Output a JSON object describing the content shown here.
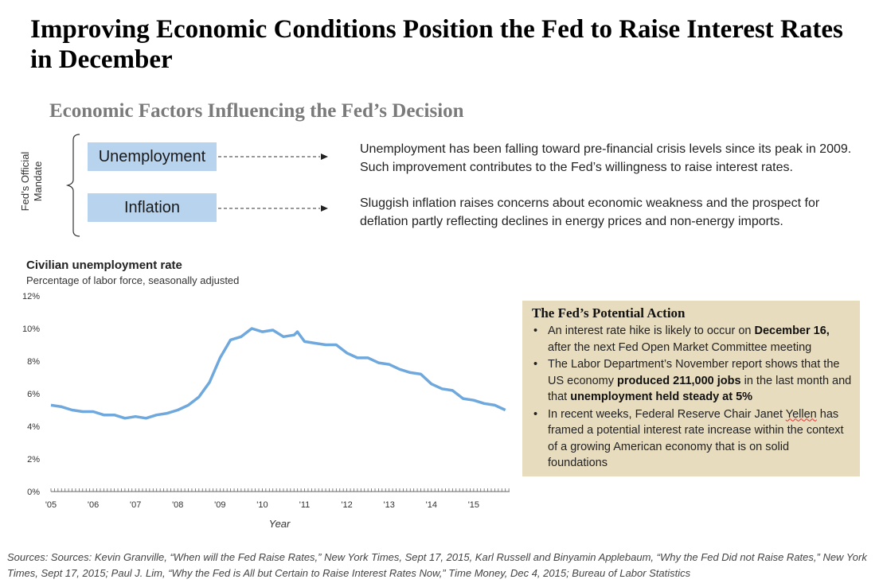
{
  "title": "Improving Economic Conditions Position the Fed to Raise Interest Rates in December",
  "subtitle": "Economic Factors Influencing the Fed’s Decision",
  "mandate_label": "Fed’s Official Mandate",
  "factors": [
    {
      "label": "Unemployment",
      "description": "Unemployment has been falling toward pre-financial crisis levels since its peak in 2009. Such improvement contributes to the Fed’s willingness to raise interest rates."
    },
    {
      "label": "Inflation",
      "description": "Sluggish inflation raises concerns about economic weakness and the prospect for deflation partly reflecting declines in energy prices and non-energy imports."
    }
  ],
  "chart_data": {
    "type": "line",
    "title": "Civilian unemployment rate",
    "subtitle": "Percentage of labor force, seasonally adjusted",
    "xlabel": "Year",
    "ylabel": "",
    "ylim": [
      0,
      12
    ],
    "yticks": [
      "0%",
      "2%",
      "4%",
      "6%",
      "8%",
      "10%",
      "12%"
    ],
    "xticks": [
      "'05",
      "'06",
      "'07",
      "'08",
      "'09",
      "'10",
      "'11",
      "'12",
      "'13",
      "'14",
      "'15"
    ],
    "grid": false,
    "series": [
      {
        "name": "Civilian unemployment rate",
        "color": "#6fa8dc",
        "x": [
          2005.0,
          2005.25,
          2005.5,
          2005.75,
          2006.0,
          2006.25,
          2006.5,
          2006.75,
          2007.0,
          2007.25,
          2007.5,
          2007.75,
          2008.0,
          2008.25,
          2008.5,
          2008.75,
          2009.0,
          2009.25,
          2009.5,
          2009.75,
          2010.0,
          2010.25,
          2010.5,
          2010.75,
          2010.83,
          2011.0,
          2011.25,
          2011.5,
          2011.75,
          2012.0,
          2012.25,
          2012.5,
          2012.75,
          2013.0,
          2013.25,
          2013.5,
          2013.75,
          2014.0,
          2014.25,
          2014.5,
          2014.75,
          2015.0,
          2015.25,
          2015.5,
          2015.75
        ],
        "values": [
          5.3,
          5.2,
          5.0,
          4.9,
          4.9,
          4.7,
          4.7,
          4.5,
          4.6,
          4.5,
          4.7,
          4.8,
          5.0,
          5.3,
          5.8,
          6.7,
          8.2,
          9.3,
          9.5,
          10.0,
          9.8,
          9.9,
          9.5,
          9.6,
          9.8,
          9.2,
          9.1,
          9.0,
          9.0,
          8.5,
          8.2,
          8.2,
          7.9,
          7.8,
          7.5,
          7.3,
          7.2,
          6.6,
          6.3,
          6.2,
          5.7,
          5.6,
          5.4,
          5.3,
          5.0
        ]
      }
    ]
  },
  "action": {
    "title": "The Fed’s Potential Action",
    "b1_a": "An interest rate hike is likely to occur on ",
    "b1_b": "December 16,",
    "b1_c": " after the next Fed Open Market Committee meeting",
    "b2_a": "The Labor Department’s November report shows that the US economy ",
    "b2_b": "produced 211,000 jobs",
    "b2_c": " in the last month and that ",
    "b2_d": "unemployment held steady at 5%",
    "b3_a": "In recent weeks, Federal Reserve Chair Janet ",
    "b3_b": "Yellen",
    "b3_c": " has framed a potential interest rate increase within the context of a growing American economy that is on solid foundations"
  },
  "sources": "Sources: Sources: Kevin Granville, “When will the Fed Raise Rates,” New York Times, Sept 17, 2015, Karl Russell and Binyamin Applebaum, “Why the Fed Did not Raise Rates,” New York Times, Sept 17, 2015; Paul J. Lim, “Why the Fed is All but Certain to Raise Interest Rates Now,” Time Money, Dec 4, 2015; Bureau of Labor Statistics"
}
